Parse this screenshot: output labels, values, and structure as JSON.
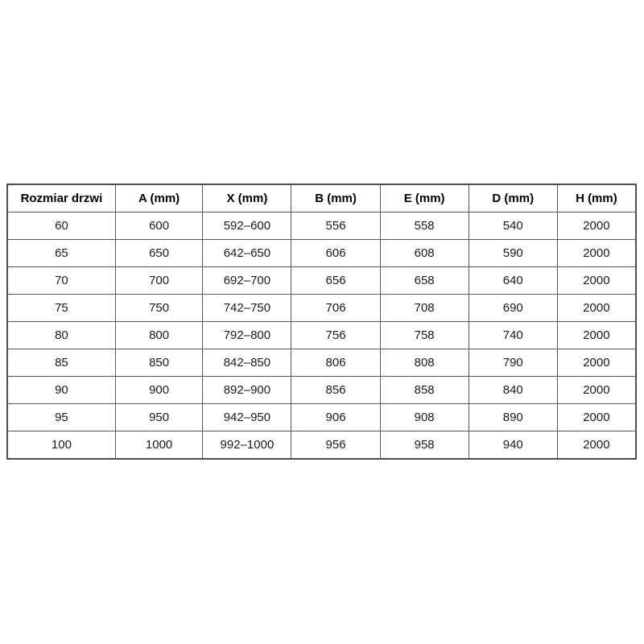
{
  "colors": {
    "background": "#ffffff",
    "grid_border": "#595959",
    "outer_border": "#4d4d4d",
    "text": "#1a1a1a"
  },
  "chart_data": {
    "type": "table",
    "title": "",
    "columns": [
      "Rozmiar drzwi",
      "A (mm)",
      "X (mm)",
      "B (mm)",
      "E (mm)",
      "D (mm)",
      "H (mm)"
    ],
    "rows": [
      [
        "60",
        "600",
        "592–600",
        "556",
        "558",
        "540",
        "2000"
      ],
      [
        "65",
        "650",
        "642–650",
        "606",
        "608",
        "590",
        "2000"
      ],
      [
        "70",
        "700",
        "692–700",
        "656",
        "658",
        "640",
        "2000"
      ],
      [
        "75",
        "750",
        "742–750",
        "706",
        "708",
        "690",
        "2000"
      ],
      [
        "80",
        "800",
        "792–800",
        "756",
        "758",
        "740",
        "2000"
      ],
      [
        "85",
        "850",
        "842–850",
        "806",
        "808",
        "790",
        "2000"
      ],
      [
        "90",
        "900",
        "892–900",
        "856",
        "858",
        "840",
        "2000"
      ],
      [
        "95",
        "950",
        "942–950",
        "906",
        "908",
        "890",
        "2000"
      ],
      [
        "100",
        "1000",
        "992–1000",
        "956",
        "958",
        "940",
        "2000"
      ]
    ]
  }
}
